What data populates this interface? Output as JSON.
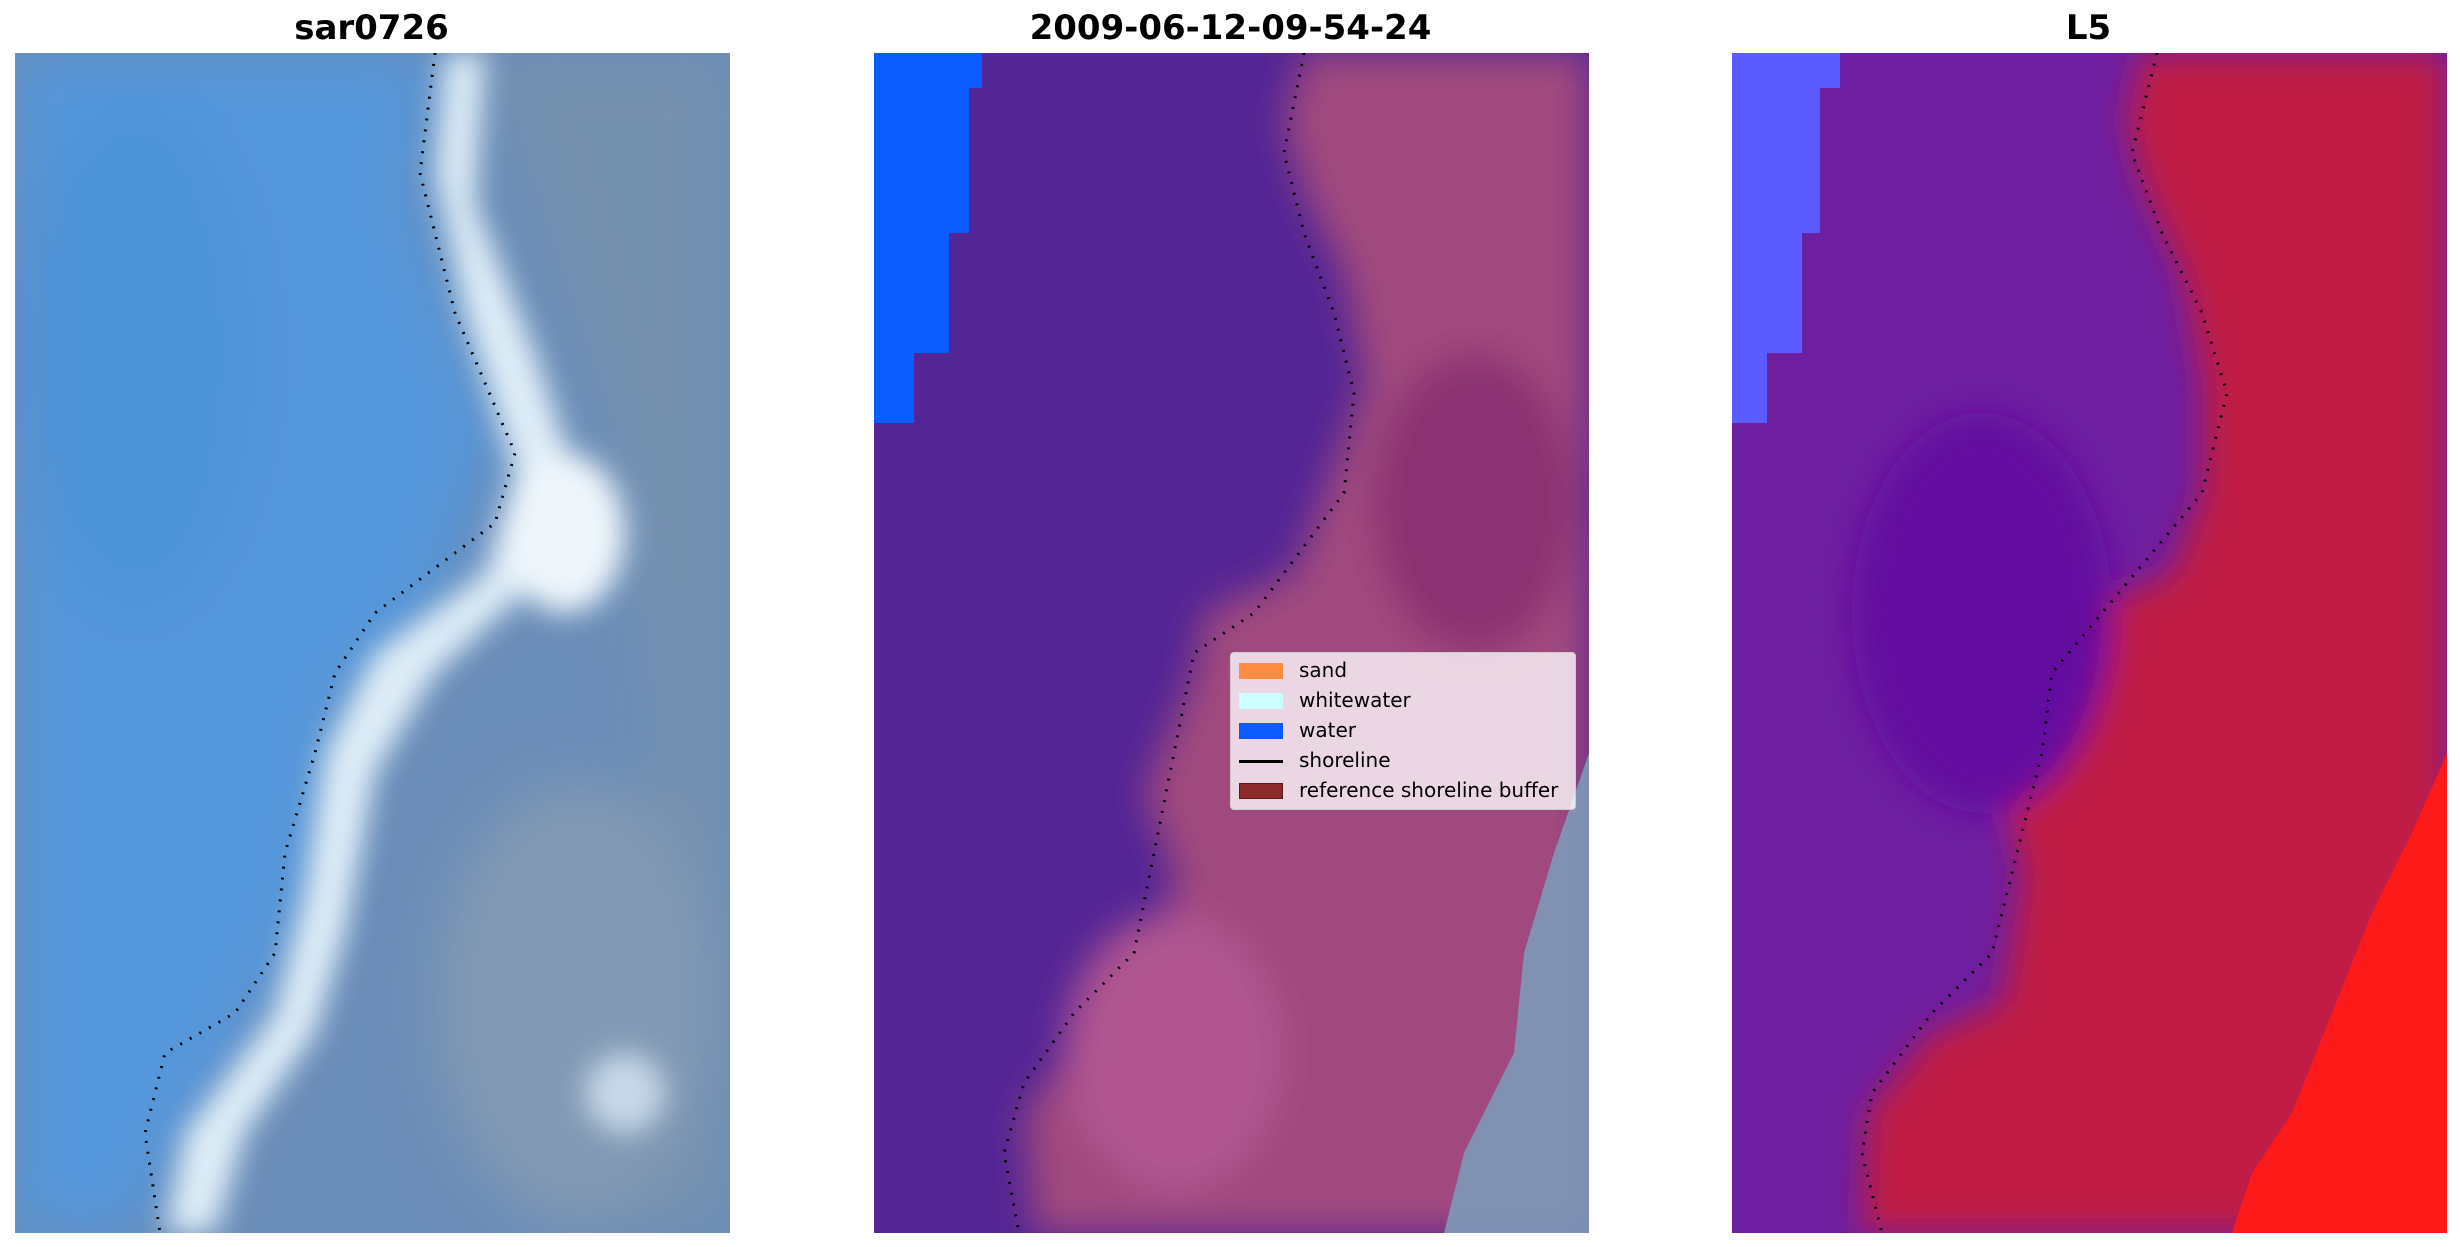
{
  "panels": [
    {
      "title": "sar0726"
    },
    {
      "title": "2009-06-12-09-54-24"
    },
    {
      "title": "L5"
    }
  ],
  "legend": {
    "entries": [
      {
        "label": "sand",
        "color": "#ff8c42",
        "kind": "patch"
      },
      {
        "label": "whitewater",
        "color": "#ccffff",
        "kind": "patch"
      },
      {
        "label": "water",
        "color": "#0a5cff",
        "kind": "patch"
      },
      {
        "label": "shoreline",
        "color": "#000000",
        "kind": "line"
      },
      {
        "label": "reference shoreline buffer",
        "color": "#8b2a2a",
        "kind": "patch"
      }
    ]
  },
  "colors": {
    "rgb_water": "#5497dc",
    "rgb_foam": "#dfeef8",
    "rgb_land": "#7491b0",
    "class_water_body": "#542595",
    "class_water_edge": "#0a5cff",
    "class_land": "#a0497e",
    "class_buffer": "#8b3372",
    "mndwi_water": "#6e1fa0",
    "mndwi_land": "#c01a45",
    "mndwi_high": "#ff1a1a",
    "mndwi_edge": "#5b5cff"
  }
}
